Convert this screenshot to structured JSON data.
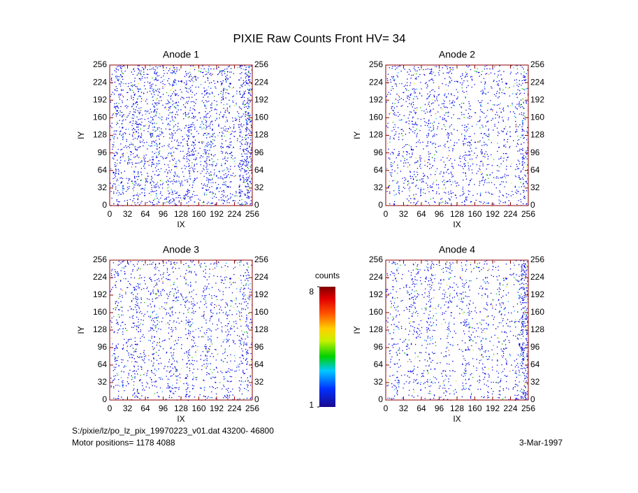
{
  "title": "PIXIE Raw Counts Front HV= 34",
  "footer": {
    "file": "S:/pixie/lz/po_lz_pix_19970223_v01.dat   43200- 46800",
    "motor": "Motor positions= 1178 4088",
    "date": "3-Mar-1997"
  },
  "chart_data": [
    {
      "type": "heatmap",
      "title": "Anode 1",
      "xlabel": "IX",
      "ylabel": "IY",
      "xlim": [
        0,
        256
      ],
      "ylim": [
        0,
        256
      ],
      "y2lim": [
        0,
        256
      ],
      "xticks": [
        0,
        32,
        64,
        96,
        128,
        160,
        192,
        224,
        256
      ],
      "yticks": [
        0,
        32,
        64,
        96,
        128,
        160,
        192,
        224,
        256
      ],
      "y2ticks": [
        0,
        32,
        64,
        96,
        128,
        160,
        192,
        224,
        256
      ]
    },
    {
      "type": "heatmap",
      "title": "Anode 2",
      "xlabel": "IX",
      "ylabel": "IY",
      "xlim": [
        0,
        256
      ],
      "ylim": [
        0,
        256
      ],
      "y2lim": [
        0,
        256
      ],
      "xticks": [
        0,
        32,
        64,
        96,
        128,
        160,
        192,
        224,
        256
      ],
      "yticks": [
        0,
        32,
        64,
        96,
        128,
        160,
        192,
        224,
        256
      ],
      "y2ticks": [
        0,
        32,
        64,
        96,
        128,
        160,
        192,
        224,
        256
      ]
    },
    {
      "type": "heatmap",
      "title": "Anode 3",
      "xlabel": "IX",
      "ylabel": "IY",
      "xlim": [
        0,
        256
      ],
      "ylim": [
        0,
        256
      ],
      "y2lim": [
        0,
        256
      ],
      "xticks": [
        0,
        32,
        64,
        96,
        128,
        160,
        192,
        224,
        256
      ],
      "yticks": [
        0,
        32,
        64,
        96,
        128,
        160,
        192,
        224,
        256
      ],
      "y2ticks": [
        0,
        32,
        64,
        96,
        128,
        160,
        192,
        224,
        256
      ]
    },
    {
      "type": "heatmap",
      "title": "Anode 4",
      "xlabel": "IX",
      "ylabel": "IY",
      "xlim": [
        0,
        256
      ],
      "ylim": [
        0,
        256
      ],
      "y2lim": [
        0,
        256
      ],
      "xticks": [
        0,
        32,
        64,
        96,
        128,
        160,
        192,
        224,
        256
      ],
      "yticks": [
        0,
        32,
        64,
        96,
        128,
        160,
        192,
        224,
        256
      ],
      "y2ticks": [
        0,
        32,
        64,
        96,
        128,
        160,
        192,
        224,
        256
      ]
    }
  ],
  "colorbar": {
    "label": "counts",
    "lim": [
      1,
      8
    ],
    "ticks": [
      1,
      8
    ]
  }
}
